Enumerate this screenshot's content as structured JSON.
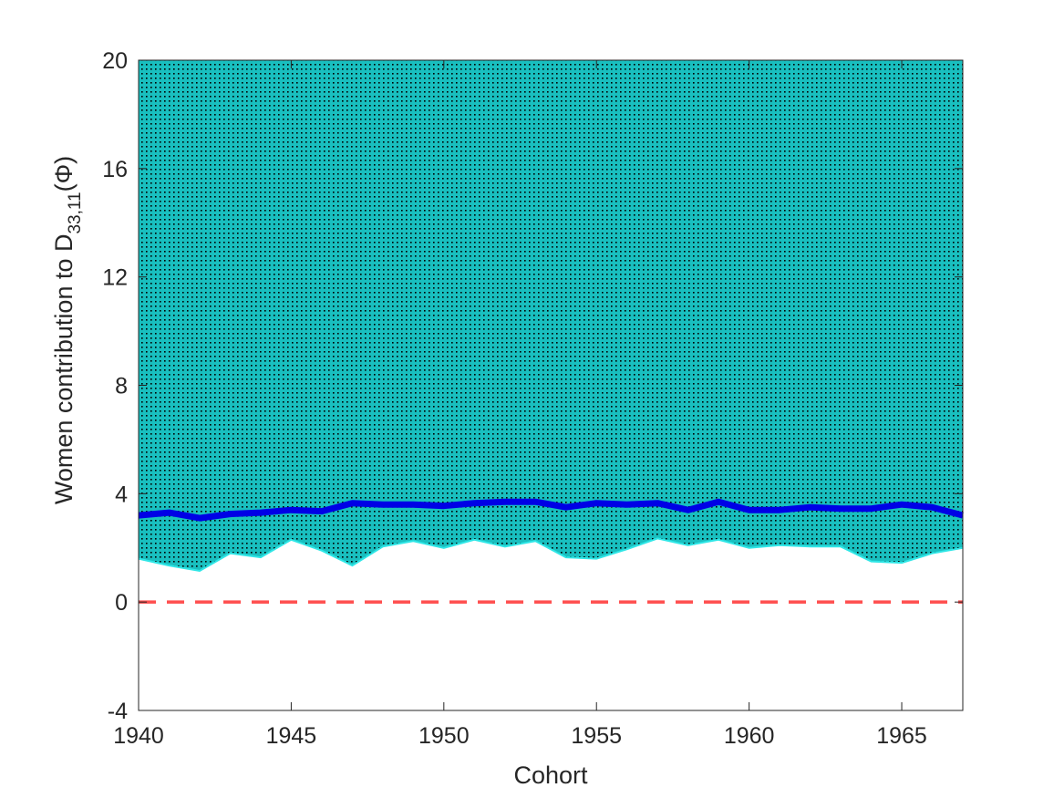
{
  "chart_data": {
    "type": "area",
    "xlabel": "Cohort",
    "ylabel_main": "Women contribution to D",
    "ylabel_sub": "33,11",
    "ylabel_arg": "(Φ)",
    "xlim": [
      1940,
      1967
    ],
    "ylim": [
      -4,
      20
    ],
    "xticks": [
      1940,
      1945,
      1950,
      1955,
      1960,
      1965
    ],
    "yticks": [
      -4,
      0,
      4,
      8,
      12,
      16,
      20
    ],
    "x": [
      1940,
      1941,
      1942,
      1943,
      1944,
      1945,
      1946,
      1947,
      1948,
      1949,
      1950,
      1951,
      1952,
      1953,
      1954,
      1955,
      1956,
      1957,
      1958,
      1959,
      1960,
      1961,
      1962,
      1963,
      1964,
      1965,
      1966,
      1967
    ],
    "series": [
      {
        "role": "estimate",
        "values": [
          3.2,
          3.3,
          3.1,
          3.25,
          3.3,
          3.4,
          3.35,
          3.65,
          3.6,
          3.6,
          3.55,
          3.65,
          3.7,
          3.7,
          3.5,
          3.65,
          3.6,
          3.65,
          3.4,
          3.7,
          3.4,
          3.4,
          3.5,
          3.45,
          3.45,
          3.6,
          3.5,
          3.2
        ]
      },
      {
        "role": "band-lower",
        "values": [
          1.6,
          1.35,
          1.15,
          1.8,
          1.65,
          2.3,
          1.9,
          1.35,
          2.05,
          2.25,
          2.0,
          2.3,
          2.05,
          2.25,
          1.65,
          1.6,
          1.95,
          2.35,
          2.1,
          2.3,
          2.0,
          2.1,
          2.05,
          2.05,
          1.5,
          1.45,
          1.8,
          2.0
        ]
      },
      {
        "role": "band-upper",
        "values": [
          20,
          20,
          20,
          20,
          20,
          20,
          20,
          20,
          20,
          20,
          20,
          20,
          20,
          20,
          20,
          20,
          20,
          20,
          20,
          20,
          20,
          20,
          20,
          20,
          20,
          20,
          20,
          20
        ]
      }
    ],
    "reference_line": {
      "y": 0,
      "style": "dashed"
    },
    "grid": false,
    "colors": {
      "band_fill": "#19BFBF",
      "band_edge": "#2FE6E6",
      "band_stipple": "#000000",
      "estimate_line": "#0000E6",
      "reference_line": "#FF4D4D",
      "axis": "#262626"
    }
  }
}
